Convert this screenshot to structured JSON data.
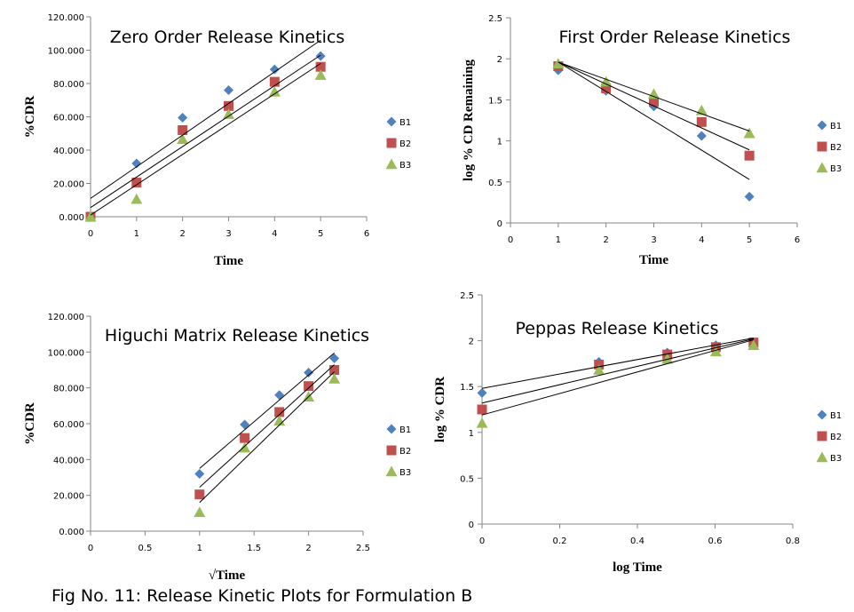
{
  "caption": "Fig No. 11: Release Kinetic Plots for Formulation B",
  "colors": {
    "B1": "#4F81BD",
    "B2": "#C0504D",
    "B3": "#9BBB59"
  },
  "chart_data": [
    {
      "id": "zero",
      "type": "scatter",
      "title": "Zero Order Release Kinetics",
      "xlabel": "Time",
      "ylabel": "%CDR",
      "xlim": [
        0,
        6
      ],
      "ylim": [
        0,
        120
      ],
      "xticks": [
        "0",
        "1",
        "2",
        "3",
        "4",
        "5",
        "6"
      ],
      "xtick_values": [
        0,
        1,
        2,
        3,
        4,
        5,
        6
      ],
      "yticks": [
        "0.000",
        "20.000",
        "40.000",
        "60.000",
        "80.000",
        "100.000",
        "120.000"
      ],
      "ytick_values": [
        0,
        20,
        40,
        60,
        80,
        100,
        120
      ],
      "legend": "right",
      "grid": false,
      "series": [
        {
          "name": "B1",
          "marker": "diamond",
          "x": [
            0,
            1,
            2,
            3,
            4,
            5
          ],
          "y": [
            0,
            32,
            59.5,
            76,
            88.5,
            96.5
          ],
          "trendline": [
            [
              0,
              11
            ],
            [
              5,
              106
            ]
          ]
        },
        {
          "name": "B2",
          "marker": "square",
          "x": [
            0,
            1,
            2,
            3,
            4,
            5
          ],
          "y": [
            0,
            20.5,
            52,
            66.5,
            81,
            90
          ],
          "trendline": [
            [
              0,
              5.5
            ],
            [
              5,
              97
            ]
          ]
        },
        {
          "name": "B3",
          "marker": "triangle",
          "x": [
            0,
            1,
            2,
            3,
            4,
            5
          ],
          "y": [
            0,
            10.5,
            46.5,
            61.5,
            75,
            85
          ],
          "trendline": [
            [
              0,
              1
            ],
            [
              5,
              92
            ]
          ]
        }
      ]
    },
    {
      "id": "first",
      "type": "scatter",
      "title": "First Order Release Kinetics",
      "xlabel": "Time",
      "ylabel": "log % CD Remaining",
      "xlim": [
        0,
        6
      ],
      "ylim": [
        0,
        2.5
      ],
      "xticks": [
        "0",
        "1",
        "2",
        "3",
        "4",
        "5",
        "6"
      ],
      "xtick_values": [
        0,
        1,
        2,
        3,
        4,
        5,
        6
      ],
      "yticks": [
        "0",
        "0.5",
        "1",
        "1.5",
        "2",
        "2.5"
      ],
      "ytick_values": [
        0,
        0.5,
        1,
        1.5,
        2,
        2.5
      ],
      "legend": "right",
      "grid": false,
      "series": [
        {
          "name": "B1",
          "marker": "diamond",
          "x": [
            1,
            2,
            3,
            4,
            5
          ],
          "y": [
            1.86,
            1.61,
            1.42,
            1.06,
            0.32
          ],
          "trendline": [
            [
              1,
              1.96
            ],
            [
              5,
              0.53
            ]
          ]
        },
        {
          "name": "B2",
          "marker": "square",
          "x": [
            1,
            2,
            3,
            4,
            5
          ],
          "y": [
            1.91,
            1.64,
            1.48,
            1.23,
            0.82
          ],
          "trendline": [
            [
              1,
              1.96
            ],
            [
              5,
              0.89
            ]
          ]
        },
        {
          "name": "B3",
          "marker": "triangle",
          "x": [
            1,
            2,
            3,
            4,
            5
          ],
          "y": [
            1.94,
            1.72,
            1.57,
            1.37,
            1.09
          ],
          "trendline": [
            [
              1,
              1.96
            ],
            [
              5,
              1.12
            ]
          ]
        }
      ]
    },
    {
      "id": "higuchi",
      "type": "scatter",
      "title": "Higuchi Matrix Release Kinetics",
      "xlabel": "√Time",
      "ylabel": "%CDR",
      "xlim": [
        0,
        2.5
      ],
      "ylim": [
        0,
        120
      ],
      "xticks": [
        "0",
        "0.5",
        "1",
        "1.5",
        "2",
        "2.5"
      ],
      "xtick_values": [
        0,
        0.5,
        1,
        1.5,
        2,
        2.5
      ],
      "yticks": [
        "0.000",
        "20.000",
        "40.000",
        "60.000",
        "80.000",
        "100.000",
        "120.000"
      ],
      "ytick_values": [
        0,
        20,
        40,
        60,
        80,
        100,
        120
      ],
      "legend": "right",
      "grid": false,
      "series": [
        {
          "name": "B1",
          "marker": "diamond",
          "x": [
            1,
            1.414,
            1.732,
            2,
            2.236
          ],
          "y": [
            32,
            59.5,
            76,
            88.5,
            96.5
          ],
          "trendline": [
            [
              1,
              35
            ],
            [
              2.236,
              99.5
            ]
          ]
        },
        {
          "name": "B2",
          "marker": "square",
          "x": [
            1,
            1.414,
            1.732,
            2,
            2.236
          ],
          "y": [
            20.5,
            52,
            66.5,
            81,
            90
          ],
          "trendline": [
            [
              1,
              24.5
            ],
            [
              2.236,
              93
            ]
          ]
        },
        {
          "name": "B3",
          "marker": "triangle",
          "x": [
            1,
            1.414,
            1.732,
            2,
            2.236
          ],
          "y": [
            10.5,
            46.5,
            61.5,
            75,
            85
          ],
          "trendline": [
            [
              1,
              16
            ],
            [
              2.236,
              89
            ]
          ]
        }
      ]
    },
    {
      "id": "peppas",
      "type": "scatter",
      "title": "Peppas Release Kinetics",
      "xlabel": "log Time",
      "ylabel": "log % CDR",
      "xlim": [
        0,
        0.8
      ],
      "ylim": [
        0,
        2.5
      ],
      "xticks": [
        "0",
        "0.2",
        "0.4",
        "0.6",
        "0.8"
      ],
      "xtick_values": [
        0,
        0.2,
        0.4,
        0.6,
        0.8
      ],
      "yticks": [
        "0",
        "0.5",
        "1",
        "1.5",
        "2",
        "2.5"
      ],
      "ytick_values": [
        0,
        0.5,
        1,
        1.5,
        2,
        2.5
      ],
      "legend": "right",
      "grid": false,
      "series": [
        {
          "name": "B1",
          "marker": "diamond",
          "x": [
            0,
            0.301,
            0.477,
            0.602,
            0.699
          ],
          "y": [
            1.43,
            1.77,
            1.87,
            1.95,
            1.98
          ],
          "trendline": [
            [
              0,
              1.48
            ],
            [
              0.699,
              2.03
            ]
          ]
        },
        {
          "name": "B2",
          "marker": "square",
          "x": [
            0,
            0.301,
            0.477,
            0.602,
            0.699
          ],
          "y": [
            1.25,
            1.74,
            1.85,
            1.93,
            1.98
          ],
          "trendline": [
            [
              0,
              1.32
            ],
            [
              0.699,
              2.02
            ]
          ]
        },
        {
          "name": "B3",
          "marker": "triangle",
          "x": [
            0,
            0.301,
            0.477,
            0.602,
            0.699
          ],
          "y": [
            1.1,
            1.68,
            1.8,
            1.88,
            1.95
          ],
          "trendline": [
            [
              0,
              1.19
            ],
            [
              0.699,
              2.01
            ]
          ]
        }
      ]
    }
  ]
}
